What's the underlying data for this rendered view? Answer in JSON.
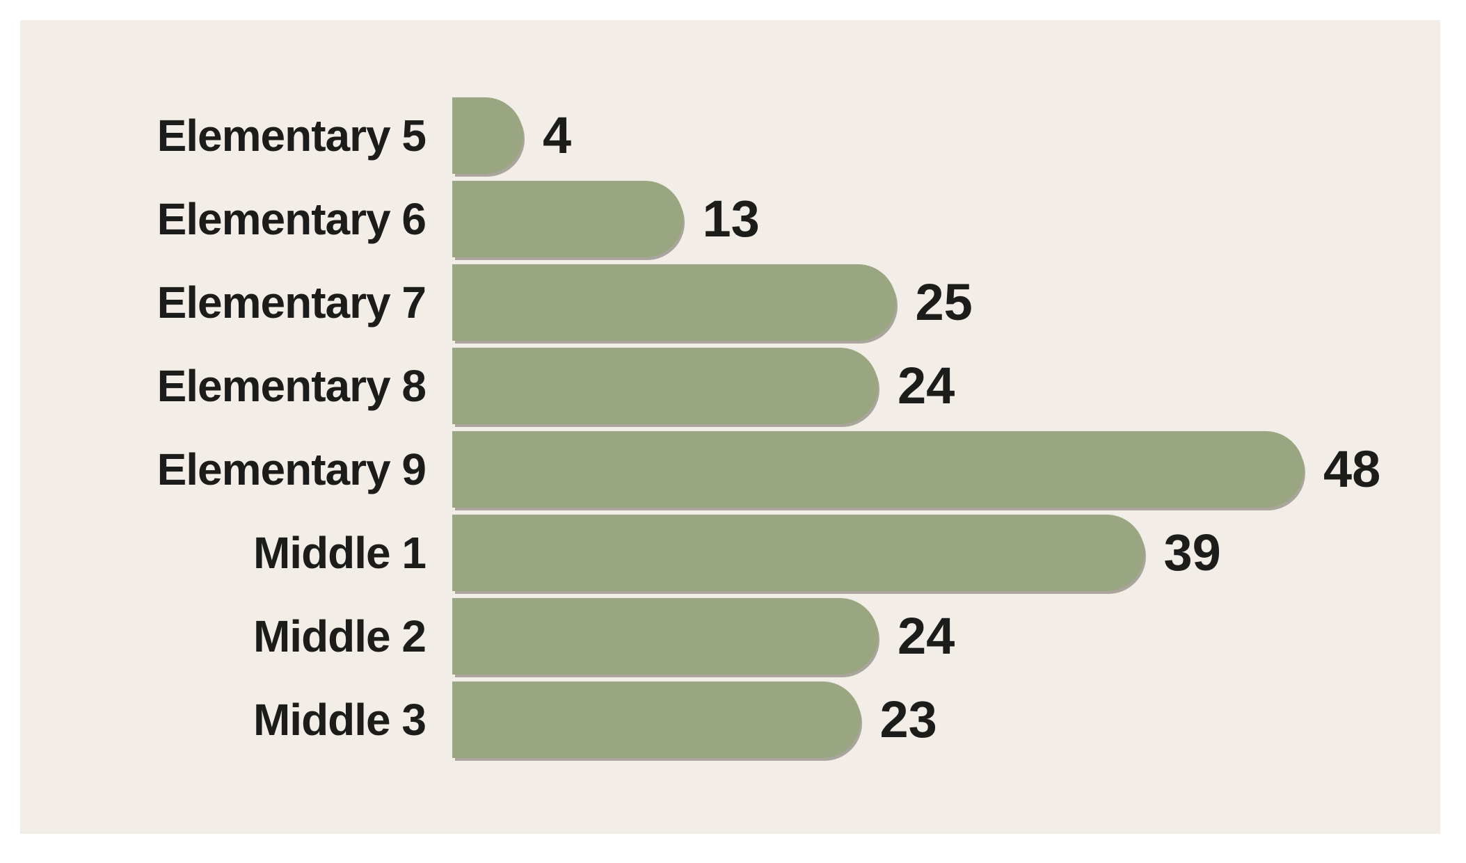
{
  "window": {
    "outer_background": "#FFFFFF",
    "panel_background": "#F2EDE6"
  },
  "chart_data": {
    "type": "bar",
    "orientation": "horizontal",
    "title": "",
    "xlabel": "",
    "ylabel": "",
    "categories": [
      "Elementary 5",
      "Elementary 6",
      "Elementary 7",
      "Elementary 8",
      "Elementary 9",
      "Middle 1",
      "Middle 2",
      "Middle 3"
    ],
    "values": [
      4,
      13,
      25,
      24,
      48,
      39,
      24,
      23
    ],
    "value_labels_shown": true,
    "value_label_position": "end-of-bar",
    "xlim": [
      0,
      50
    ],
    "grid": false,
    "legend": false,
    "axes_shown": false,
    "bar_color": "#99A681",
    "bar_shadow_color": "#8B897C",
    "text_color": "#1C1C1A",
    "background_color": "#F2EDE6"
  }
}
